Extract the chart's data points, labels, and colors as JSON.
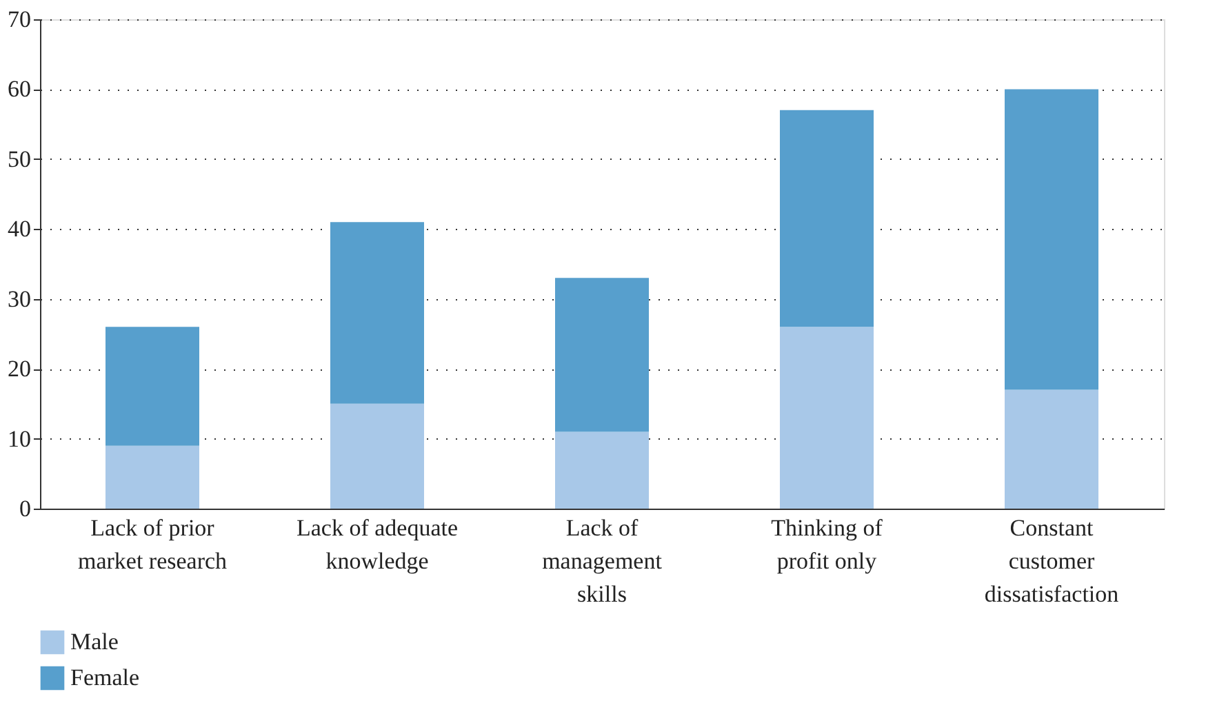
{
  "chart_data": {
    "type": "bar",
    "stacked": true,
    "categories": [
      "Lack of prior market research",
      "Lack of adequate knowledge",
      "Lack of management skills",
      "Thinking of profit only",
      "Constant customer dissatisfaction"
    ],
    "series": [
      {
        "name": "Male",
        "color": "#a8c8e8",
        "values": [
          9,
          15,
          11,
          26,
          17
        ]
      },
      {
        "name": "Female",
        "color": "#579fcd",
        "values": [
          17,
          26,
          22,
          31,
          43
        ]
      }
    ],
    "ylim": [
      0,
      70
    ],
    "yticks": [
      0,
      10,
      20,
      30,
      40,
      50,
      60,
      70
    ],
    "grid": "y",
    "legend": "bottom left"
  }
}
